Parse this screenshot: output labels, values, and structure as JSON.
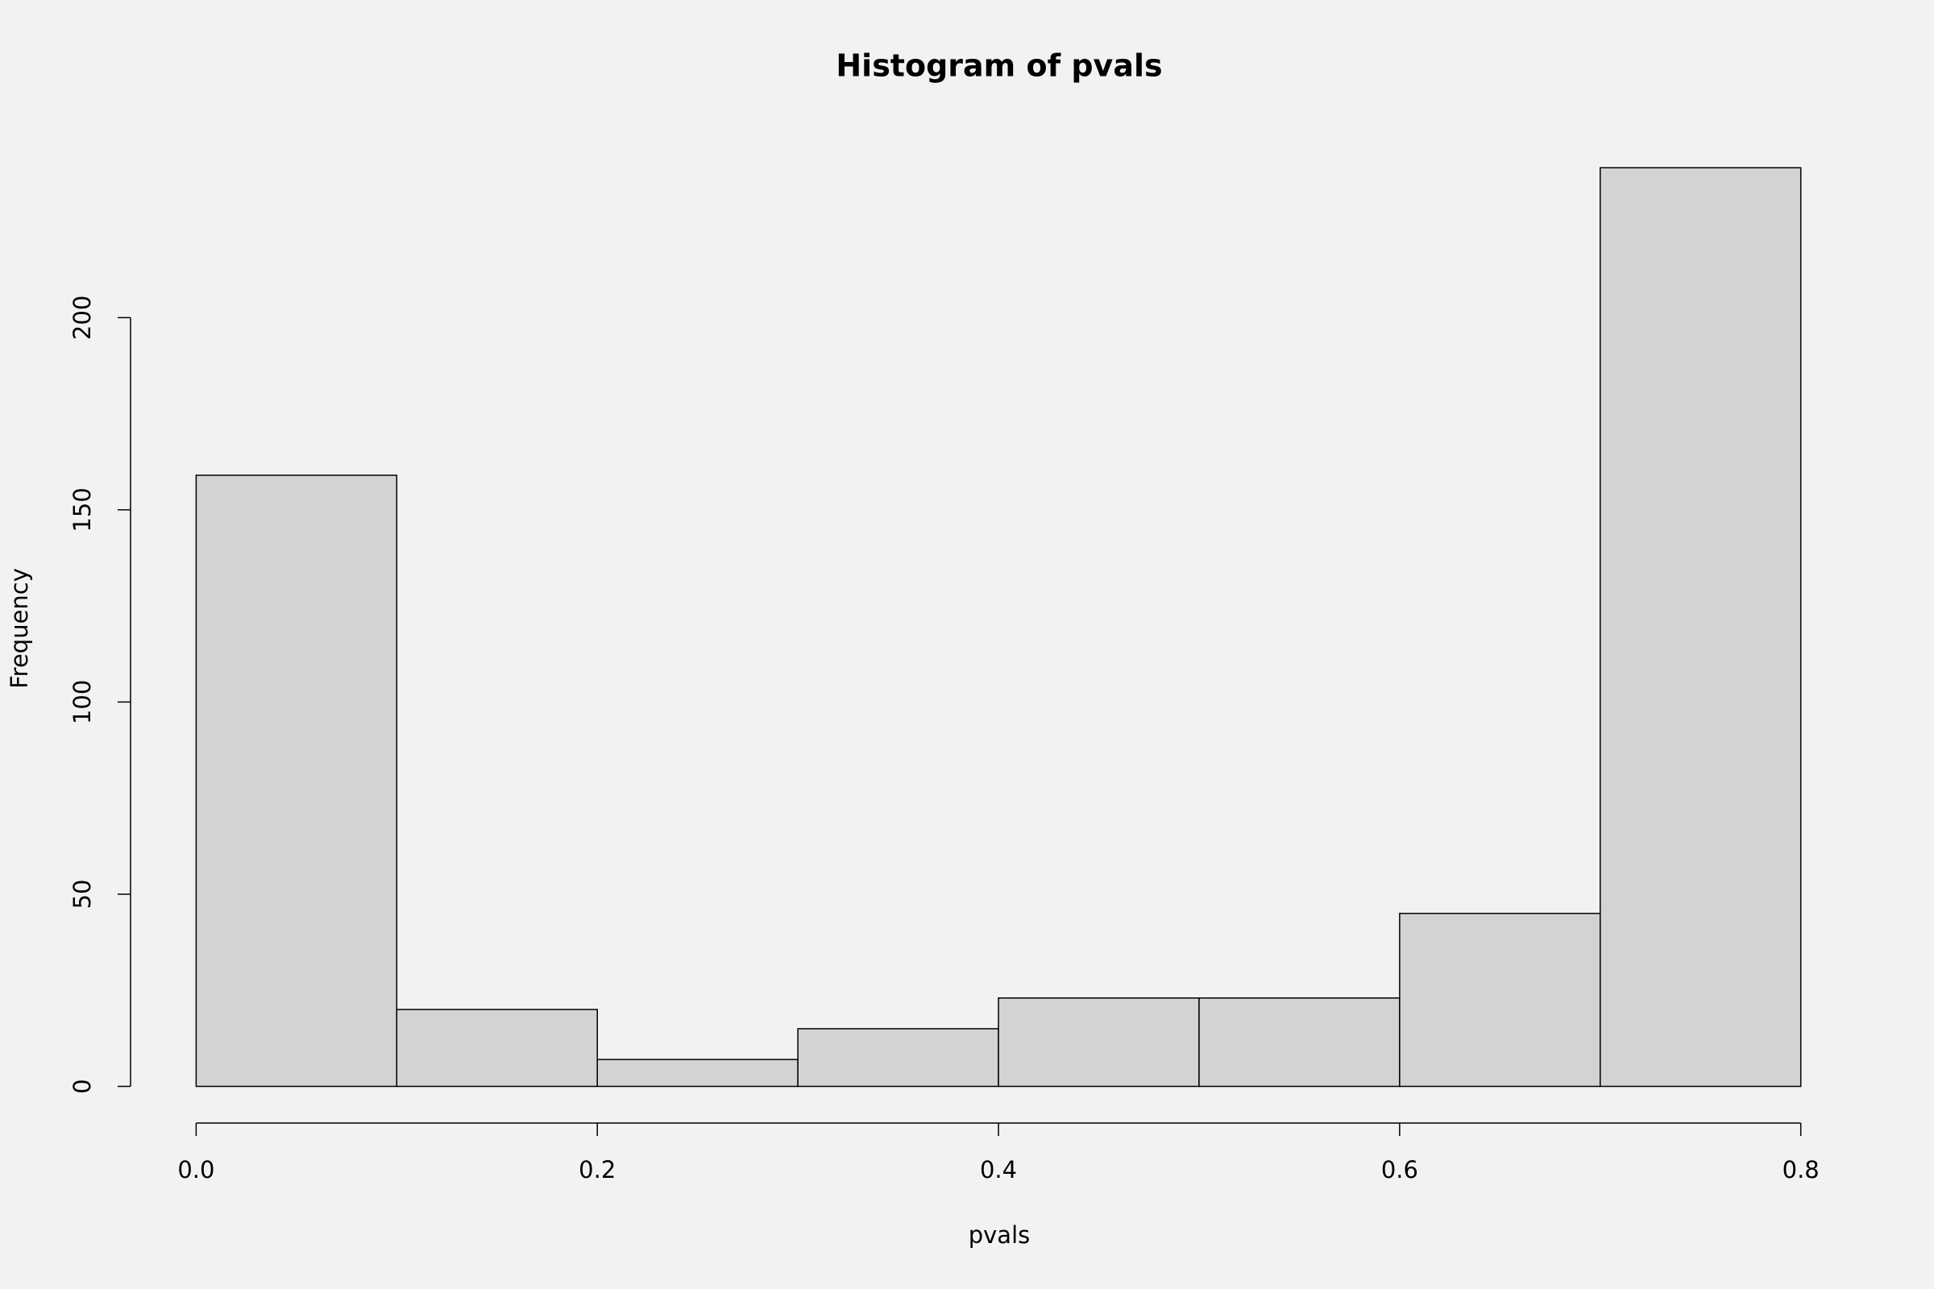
{
  "chart_data": {
    "type": "histogram",
    "title": "Histogram of pvals",
    "x_label": "pvals",
    "y_label": "Frequency",
    "bins": [
      0,
      0.1,
      0.2,
      0.3,
      0.4,
      0.5,
      0.6,
      0.7,
      0.8
    ],
    "counts": [
      159,
      20,
      7,
      15,
      23,
      23,
      45,
      239
    ],
    "color": "#d3d3d3",
    "edge_color": "#000000",
    "xlim": [
      0,
      0.8
    ],
    "xticks": [
      {
        "value": 0,
        "label": "0.0"
      },
      0.2,
      0.4,
      0.6,
      0.8
    ],
    "ylim": [
      0,
      239
    ],
    "yticks": [
      0,
      50,
      100,
      150,
      200
    ],
    "grid": false
  }
}
